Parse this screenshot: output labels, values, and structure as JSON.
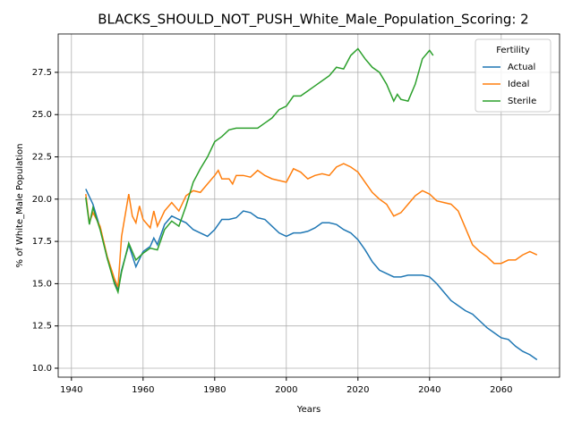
{
  "chart_data": {
    "type": "line",
    "title": "BLACKS_SHOULD_NOT_PUSH_White_Male_Population_Scoring: 2",
    "x_label": "Years",
    "y_label": "% of White_Male Population",
    "legend_title": "Fertility",
    "legend_position": "upper right",
    "grid": true,
    "xlim": [
      1936.3,
      2076.3
    ],
    "ylim": [
      9.47,
      29.77
    ],
    "xticks": [
      1940,
      1960,
      1980,
      2000,
      2020,
      2040,
      2060
    ],
    "yticks": [
      {
        "value": 10,
        "label": "10.0"
      },
      {
        "value": 12.5,
        "label": "12.5"
      },
      {
        "value": 15,
        "label": "15.0"
      },
      {
        "value": 17.5,
        "label": "17.5"
      },
      {
        "value": 20,
        "label": "20.0"
      },
      {
        "value": 22.5,
        "label": "22.5"
      },
      {
        "value": 25,
        "label": "25.0"
      },
      {
        "value": 27.5,
        "label": "27.5"
      }
    ],
    "series": [
      {
        "name": "Actual",
        "color": "#1f77b4",
        "x": [
          1944,
          1946,
          1948,
          1950,
          1952,
          1953,
          1954,
          1956,
          1958,
          1960,
          1962,
          1963,
          1964,
          1966,
          1968,
          1970,
          1972,
          1974,
          1976,
          1978,
          1980,
          1982,
          1984,
          1986,
          1988,
          1990,
          1992,
          1994,
          1996,
          1998,
          2000,
          2002,
          2004,
          2006,
          2008,
          2010,
          2012,
          2014,
          2016,
          2018,
          2020,
          2022,
          2024,
          2026,
          2028,
          2030,
          2032,
          2034,
          2036,
          2038,
          2040,
          2042,
          2044,
          2046,
          2048,
          2050,
          2052,
          2054,
          2056,
          2058,
          2060,
          2062,
          2064,
          2066,
          2068,
          2070
        ],
        "values": [
          20.6,
          19.7,
          18.3,
          16.5,
          15.2,
          14.6,
          15.8,
          17.3,
          16.0,
          16.9,
          17.2,
          17.7,
          17.3,
          18.5,
          19.0,
          18.8,
          18.6,
          18.2,
          18.0,
          17.8,
          18.2,
          18.8,
          18.8,
          18.9,
          19.3,
          19.2,
          18.9,
          18.8,
          18.4,
          18.0,
          17.8,
          18.0,
          18.0,
          18.1,
          18.3,
          18.6,
          18.6,
          18.5,
          18.2,
          18.0,
          17.6,
          17.0,
          16.3,
          15.8,
          15.6,
          15.4,
          15.4,
          15.5,
          15.5,
          15.5,
          15.4,
          15.0,
          14.5,
          14.0,
          13.7,
          13.4,
          13.2,
          12.8,
          12.4,
          12.1,
          11.8,
          11.7,
          11.3,
          11.0,
          10.8,
          10.5
        ]
      },
      {
        "name": "Ideal",
        "color": "#ff7f0e",
        "x": [
          1944,
          1945,
          1946,
          1948,
          1950,
          1952,
          1953,
          1954,
          1956,
          1957,
          1958,
          1959,
          1960,
          1962,
          1963,
          1964,
          1966,
          1968,
          1970,
          1972,
          1974,
          1976,
          1978,
          1980,
          1981,
          1982,
          1984,
          1985,
          1986,
          1988,
          1990,
          1992,
          1994,
          1996,
          1998,
          2000,
          2002,
          2004,
          2006,
          2008,
          2010,
          2012,
          2014,
          2016,
          2018,
          2020,
          2022,
          2024,
          2026,
          2028,
          2030,
          2032,
          2034,
          2036,
          2038,
          2040,
          2042,
          2044,
          2046,
          2048,
          2050,
          2052,
          2054,
          2056,
          2058,
          2060,
          2062,
          2064,
          2066,
          2068,
          2070
        ],
        "values": [
          20.3,
          18.6,
          19.2,
          18.4,
          16.6,
          15.3,
          14.8,
          17.8,
          20.3,
          19.0,
          18.6,
          19.6,
          18.8,
          18.3,
          19.3,
          18.4,
          19.3,
          19.8,
          19.3,
          20.2,
          20.5,
          20.4,
          20.9,
          21.4,
          21.7,
          21.2,
          21.2,
          20.9,
          21.4,
          21.4,
          21.3,
          21.7,
          21.4,
          21.2,
          21.1,
          21.0,
          21.8,
          21.6,
          21.2,
          21.4,
          21.5,
          21.4,
          21.9,
          22.1,
          21.9,
          21.6,
          21.0,
          20.4,
          20.0,
          19.7,
          19.0,
          19.2,
          19.7,
          20.2,
          20.5,
          20.3,
          19.9,
          19.8,
          19.7,
          19.3,
          18.3,
          17.3,
          16.9,
          16.6,
          16.2,
          16.2,
          16.4,
          16.4,
          16.7,
          16.9,
          16.7
        ]
      },
      {
        "name": "Sterile",
        "color": "#2ca02c",
        "x": [
          1944,
          1945,
          1946,
          1948,
          1950,
          1952,
          1953,
          1954,
          1956,
          1958,
          1960,
          1962,
          1964,
          1966,
          1968,
          1970,
          1972,
          1974,
          1976,
          1978,
          1980,
          1982,
          1984,
          1986,
          1988,
          1990,
          1992,
          1994,
          1996,
          1998,
          2000,
          2002,
          2004,
          2006,
          2008,
          2010,
          2012,
          2014,
          2016,
          2018,
          2020,
          2022,
          2024,
          2026,
          2028,
          2030,
          2031,
          2032,
          2034,
          2036,
          2038,
          2040,
          2041
        ],
        "values": [
          20.1,
          18.5,
          19.5,
          18.2,
          16.5,
          15.0,
          14.5,
          15.7,
          17.4,
          16.4,
          16.8,
          17.1,
          17.0,
          18.2,
          18.7,
          18.4,
          19.6,
          21.0,
          21.8,
          22.5,
          23.4,
          23.7,
          24.1,
          24.2,
          24.2,
          24.2,
          24.2,
          24.5,
          24.8,
          25.3,
          25.5,
          26.1,
          26.1,
          26.4,
          26.7,
          27.0,
          27.3,
          27.8,
          27.7,
          28.5,
          28.9,
          28.3,
          27.8,
          27.5,
          26.8,
          25.8,
          26.2,
          25.9,
          25.8,
          26.8,
          28.3,
          28.8,
          28.5
        ]
      }
    ]
  }
}
